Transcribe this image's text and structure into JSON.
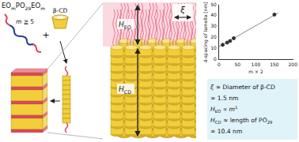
{
  "diagram": {
    "polymer": [
      {
        "text": "EO"
      },
      {
        "text": "m",
        "style": "sub"
      },
      {
        "text": "PO"
      },
      {
        "text": "29",
        "style": "sub"
      },
      {
        "text": "EO"
      },
      {
        "text": "m",
        "style": "sub"
      }
    ],
    "condition": [
      {
        "text": "m",
        "style": "italic"
      },
      {
        "text": " ≧ 5"
      }
    ],
    "host": "β-CD",
    "plus": "+",
    "xi": "ξ",
    "h_eo": [
      {
        "text": "H",
        "style": "italic"
      },
      {
        "text": "EO",
        "style": "sub"
      }
    ],
    "h_cd": [
      {
        "text": "H",
        "style": "italic"
      },
      {
        "text": "CD",
        "style": "sub"
      }
    ],
    "note_box": [
      [
        {
          "text": "ξ",
          "style": "italic"
        },
        {
          "text": " ≈ Diameter of β-CD"
        }
      ],
      [
        {
          "text": "   ≈ 1.5 nm"
        }
      ],
      [
        {
          "text": "H",
          "style": "italic"
        },
        {
          "text": "EO",
          "style": "sub"
        },
        {
          "text": " ∝ "
        },
        {
          "text": "m",
          "style": "italic"
        },
        {
          "text": "1",
          "style": "sup"
        }
      ],
      [
        {
          "text": "H",
          "style": "italic"
        },
        {
          "text": "CD",
          "style": "sub"
        },
        {
          "text": " ≈ length of PO"
        },
        {
          "text": "29",
          "style": "sub"
        }
      ],
      [
        {
          "text": "   ≈ 10.4 nm"
        }
      ]
    ]
  },
  "chart_data": {
    "type": "scatter",
    "x_label": "m × 2",
    "y_label": "d-spacing of lamella [nm]",
    "xlim": [
      0,
      200
    ],
    "xticks": [
      0,
      50,
      100,
      150,
      200
    ],
    "ylim": [
      0,
      50
    ],
    "yticks": [
      0,
      10,
      20,
      30,
      40,
      50
    ],
    "grid": false,
    "series": [
      {
        "type": "scatter",
        "x": [
          10,
          22,
          30,
          40,
          150
        ],
        "values": [
          13.5,
          15.5,
          17,
          19.5,
          41
        ],
        "color": "#333333",
        "marker": "circle"
      },
      {
        "type": "line",
        "x": [
          0,
          160
        ],
        "values": [
          11.8,
          42.5
        ],
        "color": "#888888",
        "line_style": "solid"
      }
    ]
  }
}
